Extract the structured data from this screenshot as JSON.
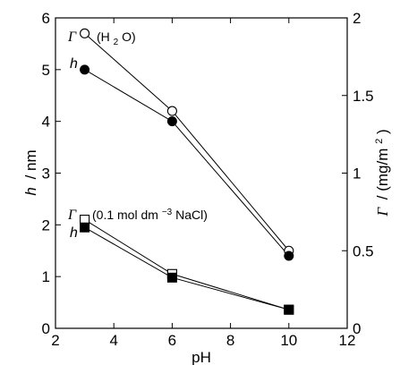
{
  "chart_data": {
    "type": "line",
    "xlabel": "pH",
    "ylabel_left": {
      "symbol": "h",
      "unit": "/ nm"
    },
    "ylabel_right": {
      "symbol": "Γ",
      "unit_pre": "/ (mg/m",
      "unit_sup": "2",
      "unit_post": ")"
    },
    "xlim": [
      2,
      12
    ],
    "ylim_left": [
      0,
      6
    ],
    "ylim_right": [
      0,
      2
    ],
    "x_ticks": [
      "2",
      "4",
      "6",
      "8",
      "10",
      "12"
    ],
    "y_ticks_left": [
      "0",
      "1",
      "2",
      "3",
      "4",
      "5",
      "6"
    ],
    "y_ticks_right": [
      "0",
      "0.5",
      "1",
      "1.5",
      "2"
    ],
    "grid": false,
    "series": [
      {
        "name": "Γ (H2O)",
        "axis": "right",
        "marker": "circle-open",
        "x": [
          3,
          6,
          10
        ],
        "y": [
          1.9,
          1.4,
          0.5
        ]
      },
      {
        "name": "h (H2O)",
        "axis": "left",
        "marker": "circle-filled",
        "x": [
          3,
          6,
          10
        ],
        "y": [
          5.0,
          4.0,
          1.4
        ]
      },
      {
        "name": "Γ (0.1 mol dm-3 NaCl)",
        "axis": "right",
        "marker": "square-open",
        "x": [
          3,
          6,
          10
        ],
        "y": [
          0.7,
          0.35,
          0.12
        ]
      },
      {
        "name": "h (0.1 mol dm-3 NaCl)",
        "axis": "left",
        "marker": "square-filled",
        "x": [
          3,
          6,
          10
        ],
        "y": [
          1.95,
          0.98,
          0.36
        ]
      }
    ],
    "annotations": {
      "water_gamma": "Γ",
      "water_label_pre": "(H",
      "water_label_sub": "2",
      "water_label_post": "O)",
      "water_h": "h",
      "nacl_gamma": "Γ",
      "nacl_label_pre": "(0.1 mol dm",
      "nacl_label_sup": "−3",
      "nacl_label_post": " NaCl)",
      "nacl_h": "h"
    }
  }
}
